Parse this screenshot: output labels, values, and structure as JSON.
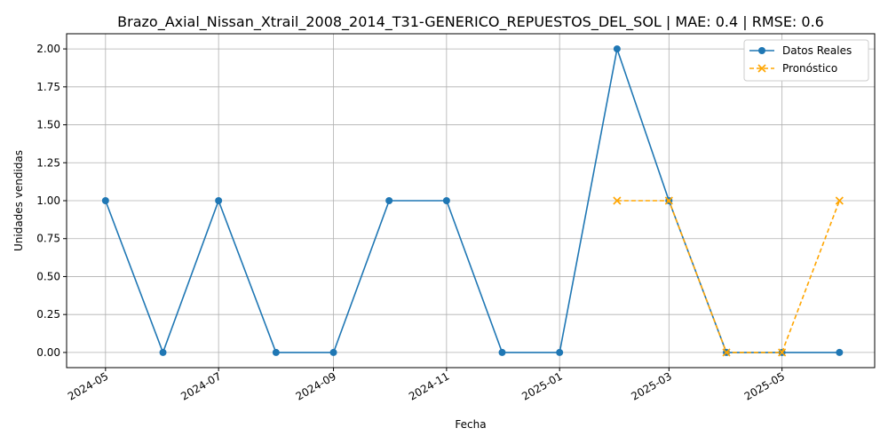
{
  "chart_data": {
    "type": "line",
    "title": "Brazo_Axial_Nissan_Xtrail_2008_2014_T31-GENERICO_REPUESTOS_DEL_SOL | MAE: 0.4 | RMSE: 0.6",
    "xlabel": "Fecha",
    "ylabel": "Unidades vendidas",
    "xlim": [
      "2024-04-10",
      "2025-06-20"
    ],
    "ylim": [
      -0.1,
      2.1
    ],
    "x_ticks": [
      {
        "date": "2024-05-01",
        "label": "2024-05"
      },
      {
        "date": "2024-07-01",
        "label": "2024-07"
      },
      {
        "date": "2024-09-01",
        "label": "2024-09"
      },
      {
        "date": "2024-11-01",
        "label": "2024-11"
      },
      {
        "date": "2025-01-01",
        "label": "2025-01"
      },
      {
        "date": "2025-03-01",
        "label": "2025-03"
      },
      {
        "date": "2025-05-01",
        "label": "2025-05"
      }
    ],
    "y_ticks": [
      {
        "value": 0,
        "label": "0.00"
      },
      {
        "value": 0.25,
        "label": "0.25"
      },
      {
        "value": 0.5,
        "label": "0.50"
      },
      {
        "value": 0.75,
        "label": "0.75"
      },
      {
        "value": 1,
        "label": "1.00"
      },
      {
        "value": 1.25,
        "label": "1.25"
      },
      {
        "value": 1.5,
        "label": "1.50"
      },
      {
        "value": 1.75,
        "label": "1.75"
      },
      {
        "value": 2,
        "label": "2.00"
      }
    ],
    "grid": true,
    "legend_position": "top-right",
    "series": [
      {
        "name": "Datos Reales",
        "color": "#1f77b4",
        "marker": "circle",
        "linestyle": "solid",
        "points": [
          {
            "x": "2024-05-01",
            "y": 1
          },
          {
            "x": "2024-06-01",
            "y": 0
          },
          {
            "x": "2024-07-01",
            "y": 1
          },
          {
            "x": "2024-08-01",
            "y": 0
          },
          {
            "x": "2024-09-01",
            "y": 0
          },
          {
            "x": "2024-10-01",
            "y": 1
          },
          {
            "x": "2024-11-01",
            "y": 1
          },
          {
            "x": "2024-12-01",
            "y": 0
          },
          {
            "x": "2025-01-01",
            "y": 0
          },
          {
            "x": "2025-02-01",
            "y": 2
          },
          {
            "x": "2025-03-01",
            "y": 1
          },
          {
            "x": "2025-04-01",
            "y": 0
          },
          {
            "x": "2025-05-01",
            "y": 0
          },
          {
            "x": "2025-06-01",
            "y": 0
          }
        ]
      },
      {
        "name": "Pronóstico",
        "color": "#ffa500",
        "marker": "x",
        "linestyle": "dashed",
        "points": [
          {
            "x": "2025-02-01",
            "y": 1
          },
          {
            "x": "2025-03-01",
            "y": 1
          },
          {
            "x": "2025-04-01",
            "y": 0
          },
          {
            "x": "2025-05-01",
            "y": 0
          },
          {
            "x": "2025-06-01",
            "y": 1
          }
        ]
      }
    ]
  }
}
